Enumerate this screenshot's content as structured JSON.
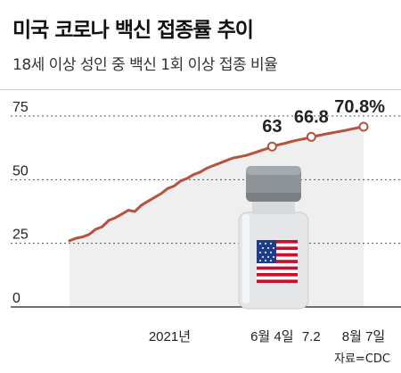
{
  "header": {
    "title": "미국 코로나 백신 접종률 추이",
    "subtitle": "18세 이상 성인 중 백신 1회 이상 접종 비율"
  },
  "source": "자료=CDC",
  "colors": {
    "line": "#b5533c",
    "area": "#efefef",
    "grid": "#555555"
  },
  "chart_data": {
    "type": "line",
    "title": "미국 코로나 백신 접종률 추이",
    "subtitle": "18세 이상 성인 중 백신 1회 이상 접종 비율",
    "ylim": [
      0,
      75
    ],
    "yticks": [
      "75",
      "50",
      "25",
      "0"
    ],
    "grid": true,
    "x_axis_labels": [
      "2021년",
      "6월 4일",
      "7.2",
      "8월 7일"
    ],
    "series": [
      {
        "values": [
          26,
          27,
          27.5,
          28.5,
          30.5,
          31.5,
          34,
          35,
          36.5,
          38,
          37.5,
          40,
          41.5,
          43,
          44.5,
          46.5,
          47.5,
          49.5,
          50.5,
          52,
          53,
          54.5,
          55.5,
          56.5,
          57.5,
          58.5,
          59,
          59.5,
          60.3,
          61.2,
          62,
          63,
          63.7,
          64.3,
          65,
          65.6,
          66.1,
          66.8,
          67.3,
          67.8,
          68.3,
          68.8,
          69.2,
          69.8,
          70.3,
          70.8
        ]
      }
    ],
    "highlighted_points": [
      {
        "x_label": "6월 4일",
        "value": 63,
        "label": "63"
      },
      {
        "x_label": "7.2",
        "value": 66.8,
        "label": "66.8"
      },
      {
        "x_label": "8월 7일",
        "value": 70.8,
        "label": "70.8%"
      }
    ]
  }
}
